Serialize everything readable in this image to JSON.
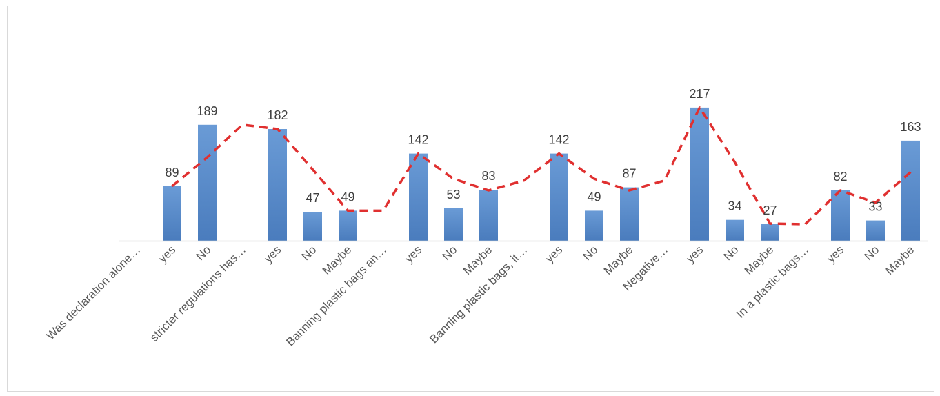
{
  "chart_data": {
    "type": "bar",
    "categories": [
      "Was declaration alone…",
      "yes",
      "No",
      "stricter regulations has…",
      "yes",
      "No",
      "Maybe",
      "Banning plastic bags an…",
      "yes",
      "No",
      "Maybe",
      "Banning plastic bags, it…",
      "yes",
      "No",
      "Maybe",
      "Negative…",
      "yes",
      "No",
      "Maybe",
      "In a plastic bags…",
      "yes",
      "No",
      "Maybe"
    ],
    "series": [
      {
        "values": [
          null,
          89,
          189,
          null,
          182,
          47,
          49,
          null,
          142,
          53,
          83,
          null,
          142,
          49,
          87,
          null,
          217,
          34,
          27,
          null,
          82,
          33,
          163
        ]
      }
    ],
    "trendline": {
      "style": "dashed",
      "values": [
        null,
        89,
        136,
        189,
        182,
        116,
        49,
        49,
        142,
        101,
        82,
        98,
        142,
        101,
        82,
        98,
        217,
        128,
        28,
        27,
        82,
        62,
        112
      ]
    },
    "ylim": [
      0,
      280
    ],
    "xlabel": "",
    "ylabel": "",
    "grid": false,
    "colors": {
      "bar": "#5b8fcf",
      "bar_dark": "#4a7cbd",
      "trend": "#e03030",
      "axis": "#d9d9d9",
      "text": "#595959"
    }
  }
}
